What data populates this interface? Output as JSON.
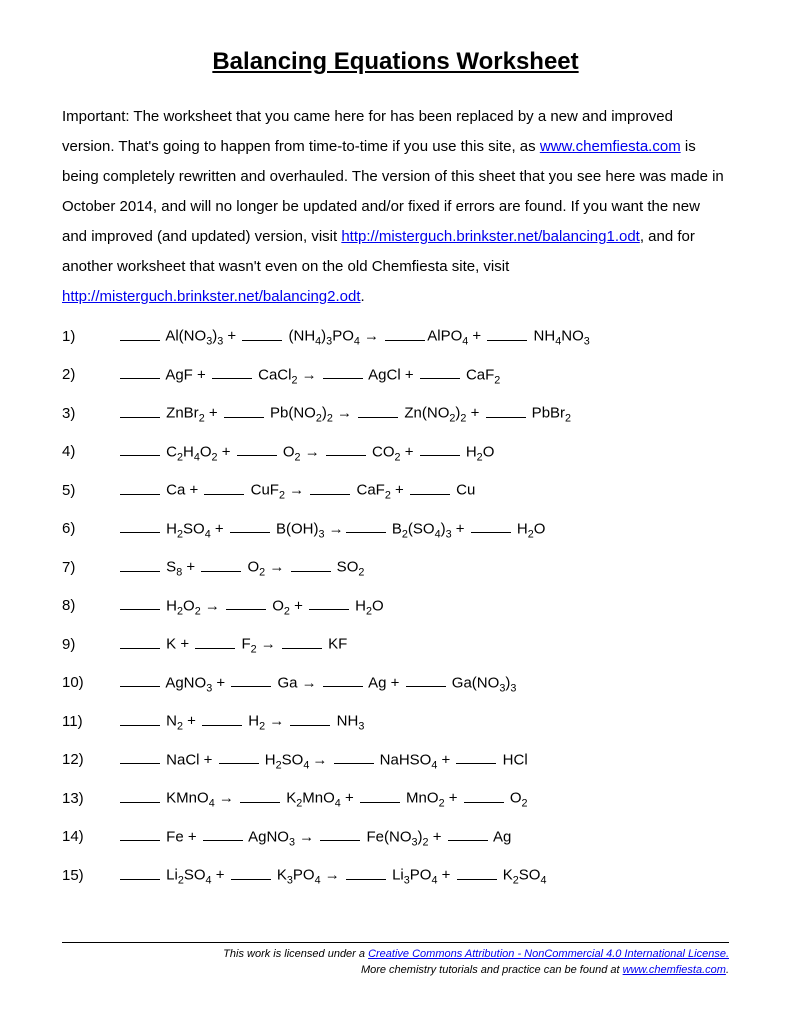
{
  "title": "Balancing Equations Worksheet",
  "intro": {
    "part1": "Important:  The worksheet that you came here for has been replaced by a new and improved version.  That's going to happen from time-to-time if you use this site, as ",
    "link1_text": "www.chemfiesta.com",
    "part2": " is being completely rewritten and overhauled.  The version of this sheet that you see here was made in October 2014, and will no longer be updated and/or fixed if errors are found.  If you want the new and improved (and updated) version, visit ",
    "link2_text": "http://misterguch.brinkster.net/balancing1.odt",
    "part3": ", and for another worksheet that wasn't even on the old Chemfiesta site, visit ",
    "link3_text": "http://misterguch.brinkster.net/balancing2.odt",
    "part4": "."
  },
  "problems": [
    {
      "n": "1)",
      "t": [
        [
          "b"
        ],
        [
          " Al(NO"
        ],
        [
          "s",
          "3"
        ],
        [
          ")"
        ],
        [
          "s",
          "3"
        ],
        [
          " + "
        ],
        [
          "b"
        ],
        [
          " (NH"
        ],
        [
          "s",
          "4"
        ],
        [
          ")"
        ],
        [
          "s",
          "3"
        ],
        [
          "PO"
        ],
        [
          "s",
          "4"
        ],
        [
          " → "
        ],
        [
          "b"
        ],
        [
          "AlPO"
        ],
        [
          "s",
          "4"
        ],
        [
          " + "
        ],
        [
          "b"
        ],
        [
          " NH"
        ],
        [
          "s",
          "4"
        ],
        [
          "NO"
        ],
        [
          "s",
          "3"
        ]
      ]
    },
    {
      "n": "2)",
      "t": [
        [
          "b"
        ],
        [
          " AgF + "
        ],
        [
          "b"
        ],
        [
          " CaCl"
        ],
        [
          "s",
          "2"
        ],
        [
          " → "
        ],
        [
          "b"
        ],
        [
          " AgCl + "
        ],
        [
          "b"
        ],
        [
          " CaF"
        ],
        [
          "s",
          "2"
        ]
      ]
    },
    {
      "n": "3)",
      "t": [
        [
          "b"
        ],
        [
          " ZnBr"
        ],
        [
          "s",
          "2"
        ],
        [
          " + "
        ],
        [
          "b"
        ],
        [
          " Pb(NO"
        ],
        [
          "s",
          "2"
        ],
        [
          ")"
        ],
        [
          "s",
          "2"
        ],
        [
          " → "
        ],
        [
          "b"
        ],
        [
          " Zn(NO"
        ],
        [
          "s",
          "2"
        ],
        [
          ")"
        ],
        [
          "s",
          "2"
        ],
        [
          " + "
        ],
        [
          "b"
        ],
        [
          " PbBr"
        ],
        [
          "s",
          "2"
        ]
      ]
    },
    {
      "n": "4)",
      "t": [
        [
          "b"
        ],
        [
          " C"
        ],
        [
          "s",
          "2"
        ],
        [
          "H"
        ],
        [
          "s",
          "4"
        ],
        [
          "O"
        ],
        [
          "s",
          "2"
        ],
        [
          " + "
        ],
        [
          "b"
        ],
        [
          " O"
        ],
        [
          "s",
          "2"
        ],
        [
          " → "
        ],
        [
          "b"
        ],
        [
          " CO"
        ],
        [
          "s",
          "2"
        ],
        [
          " + "
        ],
        [
          "b"
        ],
        [
          " H"
        ],
        [
          "s",
          "2"
        ],
        [
          "O"
        ]
      ]
    },
    {
      "n": "5)",
      "t": [
        [
          "b"
        ],
        [
          " Ca + "
        ],
        [
          "b"
        ],
        [
          " CuF"
        ],
        [
          "s",
          "2"
        ],
        [
          " → "
        ],
        [
          "b"
        ],
        [
          " CaF"
        ],
        [
          "s",
          "2"
        ],
        [
          " + "
        ],
        [
          "b"
        ],
        [
          " Cu"
        ]
      ]
    },
    {
      "n": "6)",
      "t": [
        [
          "b"
        ],
        [
          " H"
        ],
        [
          "s",
          "2"
        ],
        [
          "SO"
        ],
        [
          "s",
          "4"
        ],
        [
          " + "
        ],
        [
          "b"
        ],
        [
          " B(OH)"
        ],
        [
          "s",
          "3"
        ],
        [
          " →"
        ],
        [
          "b"
        ],
        [
          " B"
        ],
        [
          "s",
          "2"
        ],
        [
          "(SO"
        ],
        [
          "s",
          "4"
        ],
        [
          ")"
        ],
        [
          "s",
          "3"
        ],
        [
          " + "
        ],
        [
          "b"
        ],
        [
          " H"
        ],
        [
          "s",
          "2"
        ],
        [
          "O"
        ]
      ]
    },
    {
      "n": "7)",
      "t": [
        [
          "b"
        ],
        [
          " S"
        ],
        [
          "s",
          "8"
        ],
        [
          " + "
        ],
        [
          "b"
        ],
        [
          " O"
        ],
        [
          "s",
          "2"
        ],
        [
          " → "
        ],
        [
          "b"
        ],
        [
          " SO"
        ],
        [
          "s",
          "2"
        ]
      ]
    },
    {
      "n": "8)",
      "t": [
        [
          "b"
        ],
        [
          " H"
        ],
        [
          "s",
          "2"
        ],
        [
          "O"
        ],
        [
          "s",
          "2"
        ],
        [
          " → "
        ],
        [
          "b"
        ],
        [
          " O"
        ],
        [
          "s",
          "2"
        ],
        [
          " + "
        ],
        [
          "b"
        ],
        [
          " H"
        ],
        [
          "s",
          "2"
        ],
        [
          "O"
        ]
      ]
    },
    {
      "n": "9)",
      "t": [
        [
          "b"
        ],
        [
          " K + "
        ],
        [
          "b"
        ],
        [
          " F"
        ],
        [
          "s",
          "2"
        ],
        [
          " → "
        ],
        [
          "b"
        ],
        [
          " KF"
        ]
      ]
    },
    {
      "n": "10)",
      "t": [
        [
          "b"
        ],
        [
          " AgNO"
        ],
        [
          "s",
          "3"
        ],
        [
          " + "
        ],
        [
          "b"
        ],
        [
          " Ga → "
        ],
        [
          "b"
        ],
        [
          " Ag + "
        ],
        [
          "b"
        ],
        [
          " Ga(NO"
        ],
        [
          "s",
          "3"
        ],
        [
          ")"
        ],
        [
          "s",
          "3"
        ]
      ]
    },
    {
      "n": "11)",
      "t": [
        [
          "b"
        ],
        [
          " N"
        ],
        [
          "s",
          "2"
        ],
        [
          " + "
        ],
        [
          "b"
        ],
        [
          " H"
        ],
        [
          "s",
          "2"
        ],
        [
          " → "
        ],
        [
          "b"
        ],
        [
          " NH"
        ],
        [
          "s",
          "3"
        ]
      ]
    },
    {
      "n": "12)",
      "t": [
        [
          "b"
        ],
        [
          " NaCl + "
        ],
        [
          "b"
        ],
        [
          " H"
        ],
        [
          "s",
          "2"
        ],
        [
          "SO"
        ],
        [
          "s",
          "4 "
        ],
        [
          "→ "
        ],
        [
          "b"
        ],
        [
          " NaHSO"
        ],
        [
          "s",
          "4"
        ],
        [
          " + "
        ],
        [
          "b"
        ],
        [
          " HCl"
        ]
      ]
    },
    {
      "n": "13)",
      "t": [
        [
          "b"
        ],
        [
          " KMnO"
        ],
        [
          "s",
          "4"
        ],
        [
          " → "
        ],
        [
          "b"
        ],
        [
          " K"
        ],
        [
          "s",
          "2"
        ],
        [
          "MnO"
        ],
        [
          "s",
          "4"
        ],
        [
          " + "
        ],
        [
          "b"
        ],
        [
          " MnO"
        ],
        [
          "s",
          "2"
        ],
        [
          " + "
        ],
        [
          "b"
        ],
        [
          " O"
        ],
        [
          "s",
          "2"
        ]
      ]
    },
    {
      "n": "14)",
      "t": [
        [
          "b"
        ],
        [
          " Fe + "
        ],
        [
          "b"
        ],
        [
          " AgNO"
        ],
        [
          "s",
          "3"
        ],
        [
          " → "
        ],
        [
          "b"
        ],
        [
          " Fe(NO"
        ],
        [
          "s",
          "3"
        ],
        [
          ")"
        ],
        [
          "s",
          "2"
        ],
        [
          " + "
        ],
        [
          "b"
        ],
        [
          " Ag"
        ]
      ]
    },
    {
      "n": "15)",
      "t": [
        [
          "b"
        ],
        [
          " Li"
        ],
        [
          "s",
          "2"
        ],
        [
          "SO"
        ],
        [
          "s",
          "4"
        ],
        [
          " + "
        ],
        [
          "b"
        ],
        [
          " K"
        ],
        [
          "s",
          "3"
        ],
        [
          "PO"
        ],
        [
          "s",
          "4"
        ],
        [
          " → "
        ],
        [
          "b"
        ],
        [
          " Li"
        ],
        [
          "s",
          "3"
        ],
        [
          "PO"
        ],
        [
          "s",
          "4"
        ],
        [
          " + "
        ],
        [
          "b"
        ],
        [
          " K"
        ],
        [
          "s",
          "2"
        ],
        [
          "SO"
        ],
        [
          "s",
          "4"
        ]
      ]
    }
  ],
  "footer": {
    "line1_a": "This work is licensed under a ",
    "line1_link": "Creative Commons Attribution - NonCommercial 4.0 International License.",
    "line2_a": "More chemistry tutorials and practice can be found at ",
    "line2_link": "www.chemfiesta.com",
    "line2_b": "."
  }
}
